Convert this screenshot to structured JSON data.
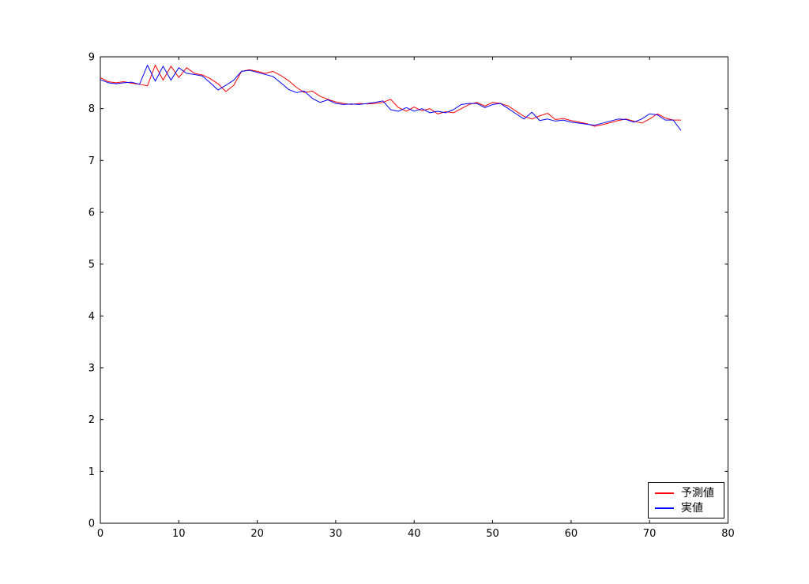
{
  "figure": {
    "background": "#ffffff",
    "spine_color": "#000000",
    "tick_label_color": "#000000"
  },
  "chart_data": {
    "type": "line",
    "title": "",
    "xlabel": "",
    "ylabel": "",
    "x_start": 0,
    "x_step": 1,
    "xlim": [
      0,
      80
    ],
    "ylim": [
      0,
      9
    ],
    "xticks": [
      0,
      10,
      20,
      30,
      40,
      50,
      60,
      70,
      80
    ],
    "yticks": [
      0,
      1,
      2,
      3,
      4,
      5,
      6,
      7,
      8,
      9
    ],
    "grid": false,
    "legend_position": "lower right",
    "series": [
      {
        "name": "予測値",
        "color": "#ff0000",
        "values": [
          8.6,
          8.52,
          8.5,
          8.52,
          8.49,
          8.47,
          8.44,
          8.84,
          8.55,
          8.82,
          8.6,
          8.79,
          8.68,
          8.65,
          8.58,
          8.48,
          8.33,
          8.45,
          8.72,
          8.75,
          8.72,
          8.68,
          8.72,
          8.64,
          8.54,
          8.41,
          8.31,
          8.34,
          8.24,
          8.18,
          8.13,
          8.1,
          8.08,
          8.1,
          8.09,
          8.1,
          8.12,
          8.18,
          8.02,
          7.95,
          8.03,
          7.96,
          8.0,
          7.9,
          7.94,
          7.92,
          8.0,
          8.08,
          8.12,
          8.05,
          8.12,
          8.1,
          8.05,
          7.95,
          7.85,
          7.8,
          7.86,
          7.91,
          7.79,
          7.81,
          7.77,
          7.74,
          7.71,
          7.66,
          7.69,
          7.73,
          7.77,
          7.8,
          7.76,
          7.72,
          7.8,
          7.9,
          7.82,
          7.78,
          7.78
        ]
      },
      {
        "name": "実値",
        "color": "#0000ff",
        "values": [
          8.56,
          8.5,
          8.48,
          8.5,
          8.51,
          8.47,
          8.84,
          8.53,
          8.82,
          8.55,
          8.79,
          8.68,
          8.66,
          8.63,
          8.5,
          8.36,
          8.45,
          8.55,
          8.72,
          8.74,
          8.7,
          8.66,
          8.62,
          8.5,
          8.37,
          8.31,
          8.34,
          8.2,
          8.12,
          8.17,
          8.1,
          8.08,
          8.09,
          8.08,
          8.1,
          8.12,
          8.15,
          7.98,
          7.95,
          8.02,
          7.95,
          8.0,
          7.92,
          7.95,
          7.92,
          7.98,
          8.08,
          8.1,
          8.1,
          8.02,
          8.08,
          8.1,
          8.0,
          7.9,
          7.8,
          7.93,
          7.77,
          7.8,
          7.76,
          7.78,
          7.74,
          7.72,
          7.7,
          7.68,
          7.72,
          7.76,
          7.8,
          7.79,
          7.74,
          7.8,
          7.9,
          7.88,
          7.78,
          7.78,
          7.58
        ]
      }
    ]
  },
  "legend": {
    "items": [
      {
        "label": "予測値",
        "color": "#ff0000"
      },
      {
        "label": "実値",
        "color": "#0000ff"
      }
    ]
  }
}
